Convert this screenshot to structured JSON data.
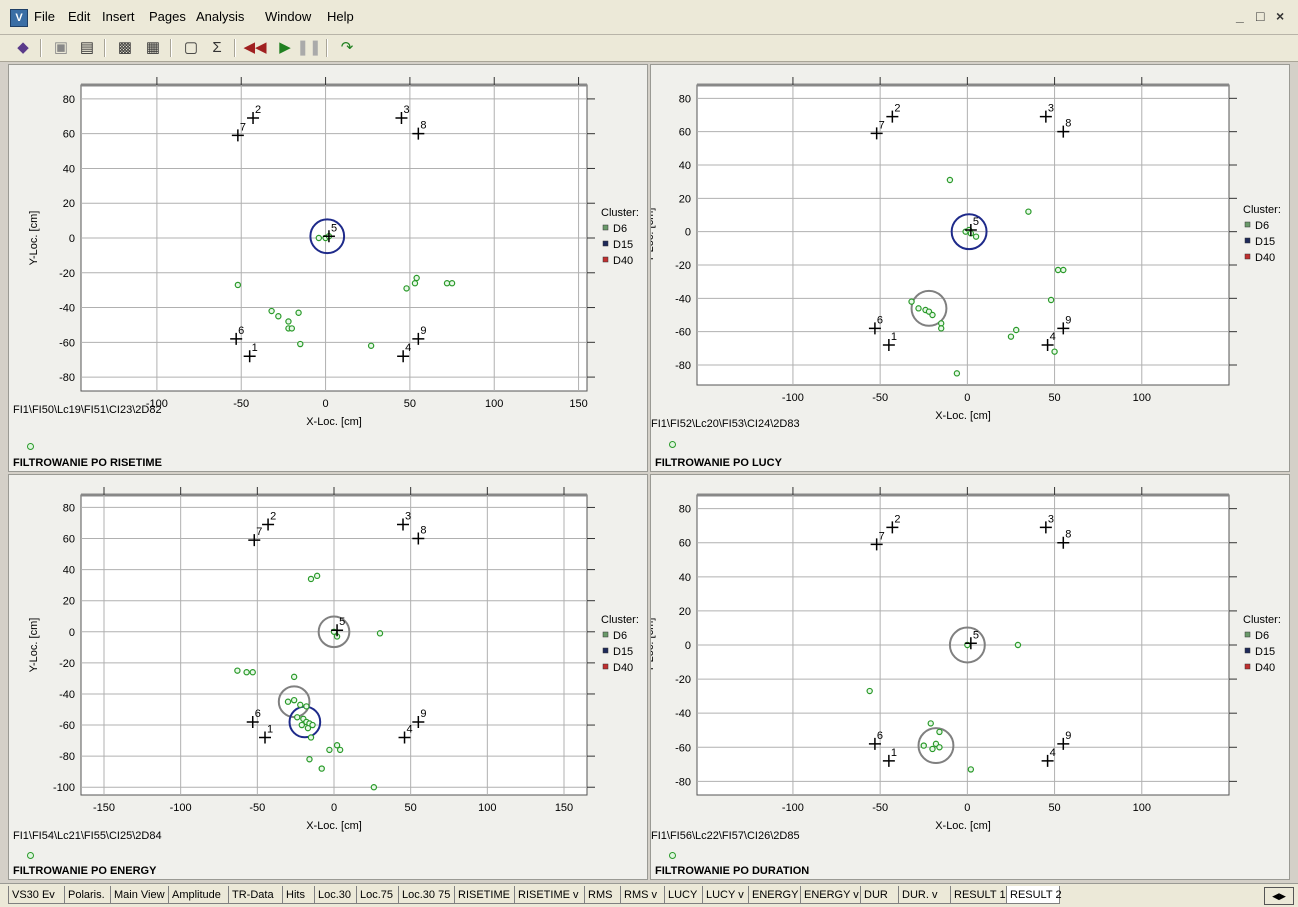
{
  "window": {
    "app_icon": "app-icon",
    "menu": [
      "File",
      "Edit",
      "Insert",
      "Pages",
      "Analysis",
      "Window",
      "Help"
    ],
    "controls": [
      "_",
      "□",
      "×"
    ]
  },
  "toolbar": {
    "icons": [
      "open-book-icon",
      "save-icon",
      "print-icon",
      "zoom-page-icon",
      "page-setup-icon",
      "graph-icon",
      "sigma-icon",
      "rewind-icon",
      "play-icon",
      "pause-icon",
      "step-icon"
    ]
  },
  "colors": {
    "sensor": "#000000",
    "event": "#2a9a2a",
    "circle_dark": "#1e2a8a",
    "circle_gray": "#808080",
    "grid": "#b0b0b0",
    "cluster6": "#6a9a6a",
    "cluster15": "#1e2a5a",
    "cluster40": "#c03030"
  },
  "legend": {
    "title": "Cluster:",
    "items": [
      "D6",
      "D15",
      "D40"
    ]
  },
  "panels": [
    {
      "id": "p1",
      "file": "FI1\\FI50\\Lc19\\FI51\\CI23\\2D82",
      "title": "FILTROWANIE PO RISETIME",
      "xlabel": "X-Loc. [cm]",
      "ylabel": "Y-Loc. [cm]",
      "xticks": [
        "-100",
        "-50",
        "0",
        "50",
        "100",
        "150"
      ],
      "yticks": [
        "80",
        "60",
        "40",
        "20",
        "0",
        "-20",
        "-40",
        "-60",
        "-80"
      ]
    },
    {
      "id": "p2",
      "file": "FI1\\FI52\\Lc20\\FI53\\CI24\\2D83",
      "title": "FILTROWANIE PO LUCY",
      "xlabel": "X-Loc. [cm]",
      "ylabel": "Y-Loc. [cm]",
      "xticks": [
        "-100",
        "-50",
        "0",
        "50",
        "100"
      ],
      "yticks": [
        "80",
        "60",
        "40",
        "20",
        "0",
        "-20",
        "-40",
        "-60",
        "-80"
      ]
    },
    {
      "id": "p3",
      "file": "FI1\\FI54\\Lc21\\FI55\\CI25\\2D84",
      "title": "FILTROWANIE PO ENERGY",
      "xlabel": "X-Loc. [cm]",
      "ylabel": "Y-Loc. [cm]",
      "xticks": [
        "-150",
        "-100",
        "-50",
        "0",
        "50",
        "100",
        "150"
      ],
      "yticks": [
        "80",
        "60",
        "40",
        "20",
        "0",
        "-20",
        "-40",
        "-60",
        "-80",
        "-100"
      ]
    },
    {
      "id": "p4",
      "file": "FI1\\FI56\\Lc22\\FI57\\CI26\\2D85",
      "title": "FILTROWANIE PO DURATION",
      "xlabel": "X-Loc. [cm]",
      "ylabel": "Y-Loc. [cm]",
      "xticks": [
        "-100",
        "-50",
        "0",
        "50",
        "100"
      ],
      "yticks": [
        "80",
        "60",
        "40",
        "20",
        "0",
        "-20",
        "-40",
        "-60",
        "-80"
      ]
    }
  ],
  "chart_data": [
    {
      "type": "scatter",
      "panel": "p1",
      "xlim": [
        -145,
        155
      ],
      "ylim": [
        -88,
        88
      ],
      "grid": true,
      "legend": "right",
      "sensors": [
        {
          "label": "1",
          "x": -45,
          "y": -68
        },
        {
          "label": "2",
          "x": -43,
          "y": 69
        },
        {
          "label": "3",
          "x": 45,
          "y": 69
        },
        {
          "label": "4",
          "x": 46,
          "y": -68
        },
        {
          "label": "5",
          "x": 2,
          "y": 1
        },
        {
          "label": "6",
          "x": -53,
          "y": -58
        },
        {
          "label": "7",
          "x": -52,
          "y": 59
        },
        {
          "label": "8",
          "x": 55,
          "y": 60
        },
        {
          "label": "9",
          "x": 55,
          "y": -58
        }
      ],
      "events": [
        [
          -4,
          0
        ],
        [
          0,
          0
        ],
        [
          2,
          1
        ],
        [
          -52,
          -27
        ],
        [
          -32,
          -42
        ],
        [
          -28,
          -45
        ],
        [
          -22,
          -48
        ],
        [
          -22,
          -52
        ],
        [
          -20,
          -52
        ],
        [
          -16,
          -43
        ],
        [
          -15,
          -61
        ],
        [
          27,
          -62
        ],
        [
          48,
          -29
        ],
        [
          53,
          -26
        ],
        [
          54,
          -23
        ],
        [
          72,
          -26
        ],
        [
          75,
          -26
        ]
      ],
      "circles": [
        {
          "x": 1,
          "y": 1,
          "r": 10,
          "color": "dark"
        }
      ]
    },
    {
      "type": "scatter",
      "panel": "p2",
      "xlim": [
        -155,
        150
      ],
      "ylim": [
        -92,
        88
      ],
      "grid": true,
      "legend": "right",
      "sensors": [
        {
          "label": "1",
          "x": -45,
          "y": -68
        },
        {
          "label": "2",
          "x": -43,
          "y": 69
        },
        {
          "label": "3",
          "x": 45,
          "y": 69
        },
        {
          "label": "4",
          "x": 46,
          "y": -68
        },
        {
          "label": "5",
          "x": 2,
          "y": 1
        },
        {
          "label": "6",
          "x": -53,
          "y": -58
        },
        {
          "label": "7",
          "x": -52,
          "y": 59
        },
        {
          "label": "8",
          "x": 55,
          "y": 60
        },
        {
          "label": "9",
          "x": 55,
          "y": -58
        }
      ],
      "events": [
        [
          -1,
          0
        ],
        [
          1,
          1
        ],
        [
          2,
          -1
        ],
        [
          5,
          -3
        ],
        [
          -10,
          31
        ],
        [
          35,
          12
        ],
        [
          -28,
          -46
        ],
        [
          -24,
          -47
        ],
        [
          -22,
          -48
        ],
        [
          -20,
          -50
        ],
        [
          -15,
          -55
        ],
        [
          -15,
          -58
        ],
        [
          -32,
          -42
        ],
        [
          52,
          -23
        ],
        [
          55,
          -23
        ],
        [
          48,
          -41
        ],
        [
          28,
          -59
        ],
        [
          25,
          -63
        ],
        [
          50,
          -72
        ],
        [
          -6,
          -85
        ]
      ],
      "circles": [
        {
          "x": 1,
          "y": 0,
          "r": 10,
          "color": "dark"
        },
        {
          "x": -22,
          "y": -46,
          "r": 10,
          "color": "gray"
        }
      ]
    },
    {
      "type": "scatter",
      "panel": "p3",
      "xlim": [
        -165,
        165
      ],
      "ylim": [
        -105,
        88
      ],
      "grid": true,
      "legend": "right",
      "sensors": [
        {
          "label": "1",
          "x": -45,
          "y": -68
        },
        {
          "label": "2",
          "x": -43,
          "y": 69
        },
        {
          "label": "3",
          "x": 45,
          "y": 69
        },
        {
          "label": "4",
          "x": 46,
          "y": -68
        },
        {
          "label": "5",
          "x": 2,
          "y": 1
        },
        {
          "label": "6",
          "x": -53,
          "y": -58
        },
        {
          "label": "7",
          "x": -52,
          "y": 59
        },
        {
          "label": "8",
          "x": 55,
          "y": 60
        },
        {
          "label": "9",
          "x": 55,
          "y": -58
        }
      ],
      "events": [
        [
          0,
          0
        ],
        [
          2,
          -3
        ],
        [
          -15,
          34
        ],
        [
          -11,
          36
        ],
        [
          30,
          -1
        ],
        [
          -63,
          -25
        ],
        [
          -57,
          -26
        ],
        [
          -53,
          -26
        ],
        [
          -26,
          -29
        ],
        [
          -30,
          -45
        ],
        [
          -26,
          -44
        ],
        [
          -22,
          -47
        ],
        [
          -18,
          -48
        ],
        [
          -24,
          -55
        ],
        [
          -20,
          -56
        ],
        [
          -18,
          -58
        ],
        [
          -16,
          -59
        ],
        [
          -14,
          -60
        ],
        [
          -21,
          -60
        ],
        [
          -17,
          -62
        ],
        [
          -15,
          -68
        ],
        [
          -16,
          -82
        ],
        [
          -8,
          -88
        ],
        [
          -3,
          -76
        ],
        [
          2,
          -73
        ],
        [
          4,
          -76
        ],
        [
          26,
          -100
        ]
      ],
      "circles": [
        {
          "x": 0,
          "y": 0,
          "r": 10,
          "color": "gray"
        },
        {
          "x": -26,
          "y": -45,
          "r": 10,
          "color": "gray"
        },
        {
          "x": -19,
          "y": -58,
          "r": 10,
          "color": "dark"
        }
      ]
    },
    {
      "type": "scatter",
      "panel": "p4",
      "xlim": [
        -155,
        150
      ],
      "ylim": [
        -88,
        88
      ],
      "grid": true,
      "legend": "right",
      "sensors": [
        {
          "label": "1",
          "x": -45,
          "y": -68
        },
        {
          "label": "2",
          "x": -43,
          "y": 69
        },
        {
          "label": "3",
          "x": 45,
          "y": 69
        },
        {
          "label": "4",
          "x": 46,
          "y": -68
        },
        {
          "label": "5",
          "x": 2,
          "y": 1
        },
        {
          "label": "6",
          "x": -53,
          "y": -58
        },
        {
          "label": "7",
          "x": -52,
          "y": 59
        },
        {
          "label": "8",
          "x": 55,
          "y": 60
        },
        {
          "label": "9",
          "x": 55,
          "y": -58
        }
      ],
      "events": [
        [
          0,
          0
        ],
        [
          29,
          0
        ],
        [
          -56,
          -27
        ],
        [
          -21,
          -46
        ],
        [
          -16,
          -51
        ],
        [
          -25,
          -59
        ],
        [
          -18,
          -58
        ],
        [
          -16,
          -60
        ],
        [
          -20,
          -61
        ],
        [
          2,
          -73
        ]
      ],
      "circles": [
        {
          "x": 0,
          "y": 0,
          "r": 10,
          "color": "gray"
        },
        {
          "x": -18,
          "y": -59,
          "r": 10,
          "color": "gray"
        }
      ]
    }
  ],
  "tabs": {
    "items": [
      "VS30 Ev",
      "Polaris.",
      "Main View",
      "Amplitude",
      "TR-Data",
      "Hits",
      "Loc.30",
      "Loc.75",
      "Loc.30 75",
      "RISETIME",
      "RISETIME v",
      "RMS",
      "RMS v",
      "LUCY",
      "LUCY v",
      "ENERGY",
      "ENERGY v",
      "DUR",
      "DUR. v",
      "RESULT 1",
      "RESULT 2"
    ],
    "active": "RESULT 2"
  }
}
